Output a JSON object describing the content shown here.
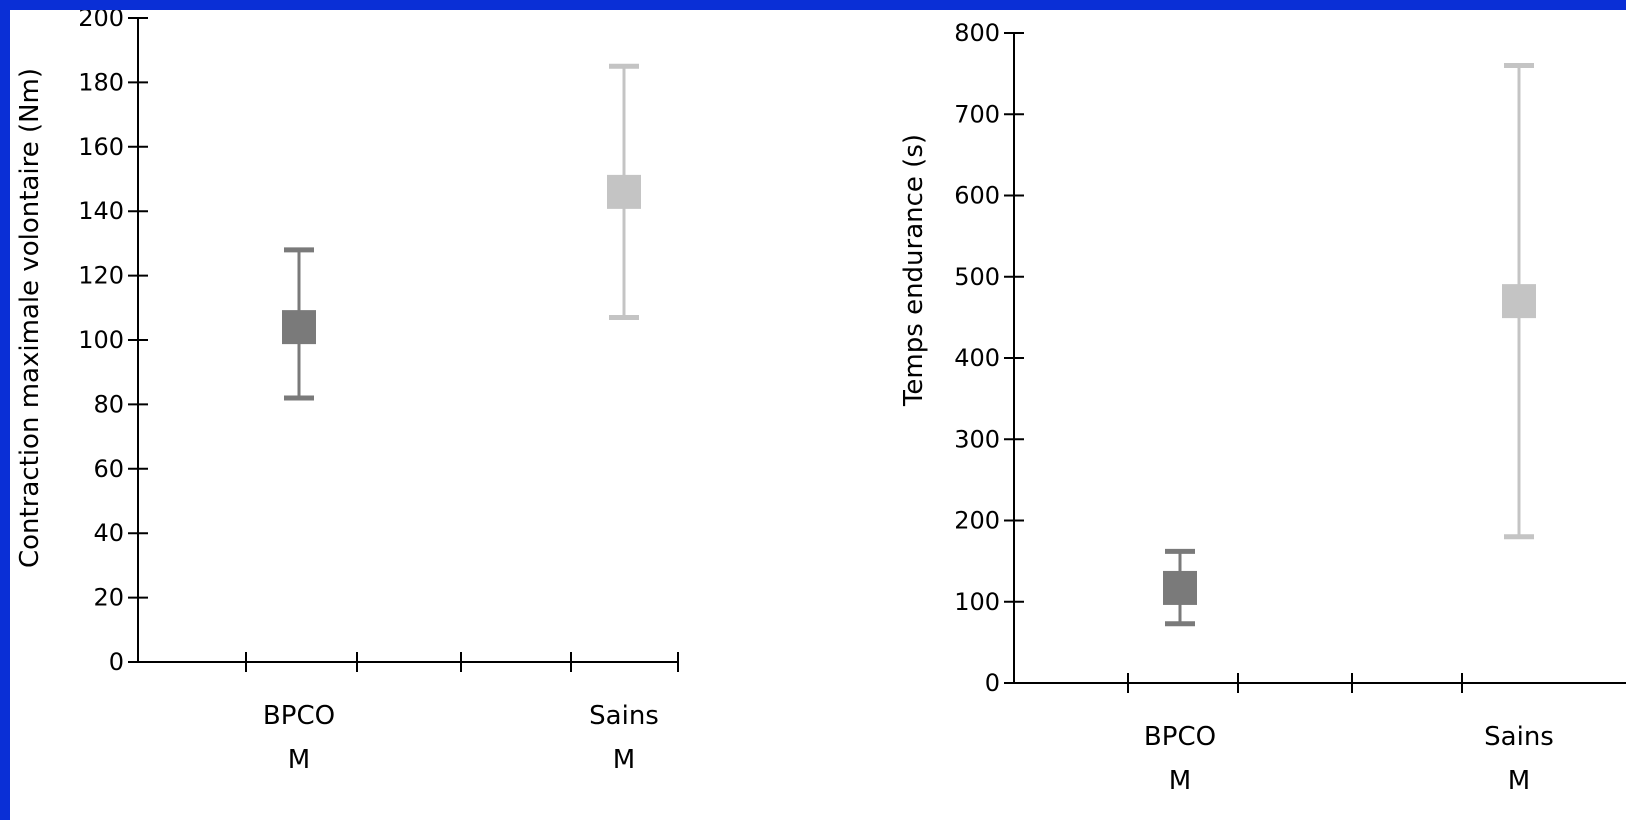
{
  "chart_data": [
    {
      "type": "scatter",
      "ylabel": "Contraction maximale volontaire (Nm)",
      "xlabel": "",
      "ylim": [
        0,
        200
      ],
      "yticks": [
        0,
        20,
        40,
        60,
        80,
        100,
        120,
        140,
        160,
        180,
        200
      ],
      "categories": [
        {
          "line1": "BPCO",
          "line2": "M"
        },
        {
          "line1": "Sains",
          "line2": "M"
        }
      ],
      "points": [
        {
          "mean": 104,
          "low": 82,
          "high": 128,
          "color": "#7a7a7a"
        },
        {
          "mean": 146,
          "low": 107,
          "high": 185,
          "color": "#c4c4c4"
        }
      ]
    },
    {
      "type": "scatter",
      "ylabel": "Temps endurance (s)",
      "xlabel": "",
      "ylim": [
        0,
        800
      ],
      "yticks": [
        0,
        100,
        200,
        300,
        400,
        500,
        600,
        700,
        800
      ],
      "categories": [
        {
          "line1": "BPCO",
          "line2": "M"
        },
        {
          "line1": "Sains",
          "line2": "M"
        }
      ],
      "points": [
        {
          "mean": 117,
          "low": 73,
          "high": 162,
          "color": "#7a7a7a"
        },
        {
          "mean": 470,
          "low": 180,
          "high": 760,
          "color": "#c4c4c4"
        }
      ]
    }
  ]
}
